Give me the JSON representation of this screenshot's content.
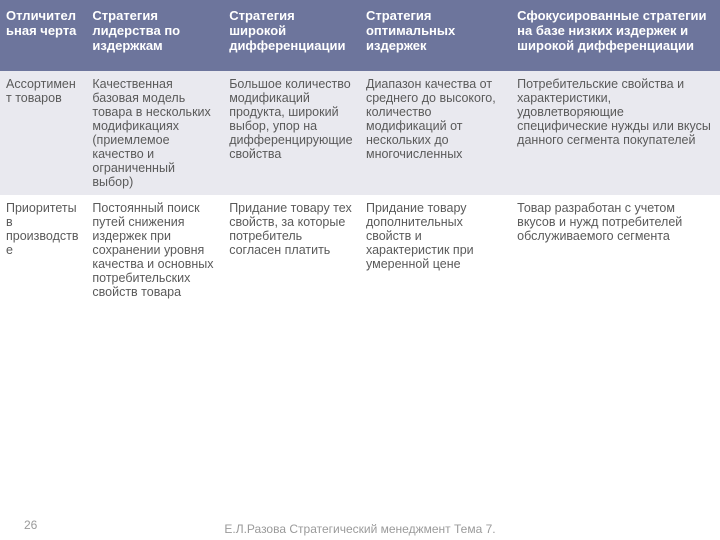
{
  "table": {
    "header_bg": "#6d759c",
    "header_color": "#ffffff",
    "header_fontsize": 13,
    "body_fontsize": 12.5,
    "body_color": "#5a5a5a",
    "row_alt_bg": "#e9e9ef",
    "row_bg": "#ffffff",
    "col_widths": [
      "12%",
      "19%",
      "19%",
      "21%",
      "29%"
    ],
    "columns": [
      "Отличительная черта",
      "Стратегия лидерства по издержкам",
      "Стратегия широкой дифференциации",
      "Стратегия оптимальных издержек",
      "Сфокусированные стратегии на базе низких издержек и широкой дифференциации"
    ],
    "rows": [
      [
        "Ассортимент товаров",
        "Качественная базовая модель товара в нескольких модификациях (приемлемое качество и ограниченный выбор)",
        "Большое количество модификаций продукта, широкий выбор, упор на дифференцирующие свойства",
        "Диапазон качества от среднего до высокого, количество модификаций от нескольких до многочисленных",
        "Потребительские свойства и характеристики, удовлетворяющие специфические нужды или вкусы данного сегмента покупателей"
      ],
      [
        "Приоритеты в производстве",
        "Постоянный поиск путей снижения издержек при сохранении уровня качества и основных потребительских свойств товара",
        "Придание товару тех свойств, за которые потребитель согласен платить",
        "Придание товару дополнительных свойств и характеристик при умеренной цене",
        "Товар разработан с учетом вкусов и нужд потребителей обслуживаемого сегмента"
      ]
    ]
  },
  "footer": {
    "text": "Е.Л.Разова Стратегический менеджмент Тема 7.",
    "page": "26",
    "color": "#9a9a9a",
    "fontsize": 12
  }
}
